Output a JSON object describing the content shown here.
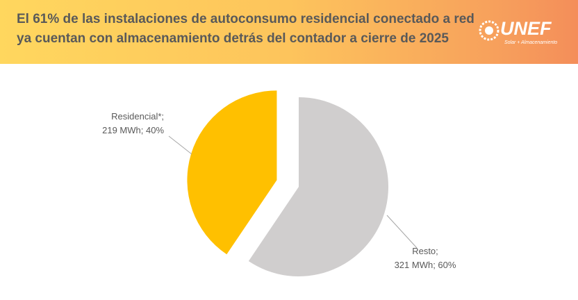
{
  "chart_data": {
    "type": "pie",
    "title": [
      "El 61% de las instalaciones de autoconsumo residencial conectado a red",
      "ya cuentan con almacenamiento detrás del contador a cierre de 2025"
    ],
    "categories": [
      "Residencial*;",
      "Resto;"
    ],
    "values": [
      219,
      321
    ],
    "value_labels": [
      "219 MWh; 40%",
      "321 MWh; 60%"
    ],
    "colors": [
      "#FFC000",
      "#D0CECE"
    ]
  },
  "logo": {
    "name": "UNEF",
    "tagline": "Solar + Almacenamiento"
  }
}
